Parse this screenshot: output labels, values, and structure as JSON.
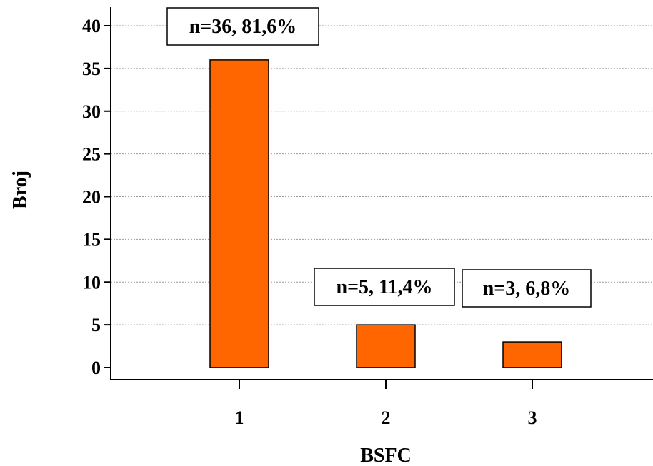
{
  "chart_data": {
    "type": "bar",
    "categories": [
      "1",
      "2",
      "3"
    ],
    "values": [
      36,
      5,
      3
    ],
    "data_labels": [
      "n=36, 81,6%",
      "n=5, 11,4%",
      "n=3, 6,8%"
    ],
    "xlabel": "BSFC",
    "ylabel": "Broj",
    "ylim": [
      0,
      40
    ],
    "yticks": [
      "0",
      "5",
      "10",
      "15",
      "20",
      "25",
      "30",
      "35",
      "40"
    ],
    "grid": true,
    "bar_color": "#ff6600"
  }
}
